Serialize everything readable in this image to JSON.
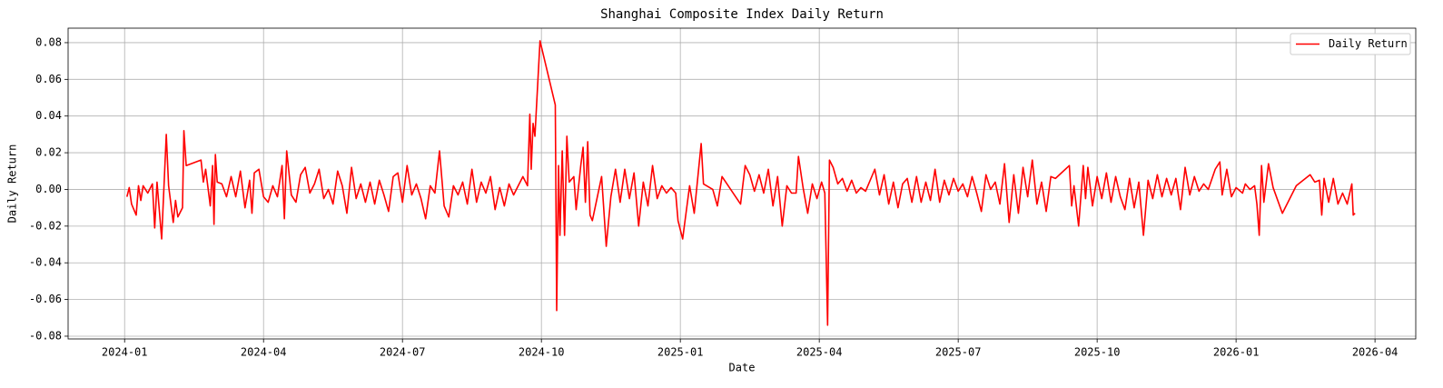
{
  "chart_data": {
    "type": "line",
    "title": "Shanghai Composite Index Daily Return",
    "x_label": "Date",
    "y_label": "Daily Return",
    "x": [
      0.05,
      0.1,
      0.15,
      0.25,
      0.3,
      0.35,
      0.4,
      0.5,
      0.6,
      0.65,
      0.7,
      0.8,
      0.9,
      0.95,
      1.05,
      1.1,
      1.15,
      1.25,
      1.28,
      1.33,
      1.65,
      1.7,
      1.75,
      1.85,
      1.9,
      1.93,
      1.96,
      2.0,
      2.1,
      2.2,
      2.3,
      2.4,
      2.5,
      2.6,
      2.7,
      2.75,
      2.8,
      2.9,
      3.0,
      3.1,
      3.2,
      3.3,
      3.4,
      3.45,
      3.5,
      3.6,
      3.7,
      3.8,
      3.9,
      4.0,
      4.1,
      4.2,
      4.3,
      4.4,
      4.5,
      4.6,
      4.7,
      4.8,
      4.9,
      5.0,
      5.1,
      5.2,
      5.3,
      5.4,
      5.5,
      5.6,
      5.7,
      5.8,
      5.9,
      6.0,
      6.1,
      6.2,
      6.3,
      6.4,
      6.5,
      6.6,
      6.7,
      6.8,
      6.9,
      7.0,
      7.1,
      7.2,
      7.3,
      7.4,
      7.5,
      7.6,
      7.7,
      7.8,
      7.9,
      8.0,
      8.1,
      8.2,
      8.3,
      8.4,
      8.5,
      8.6,
      8.7,
      8.75,
      8.78,
      8.82,
      8.86,
      8.97,
      9.3,
      9.33,
      9.37,
      9.4,
      9.45,
      9.5,
      9.55,
      9.6,
      9.7,
      9.75,
      9.85,
      9.9,
      9.95,
      10.0,
      10.05,
      10.1,
      10.2,
      10.3,
      10.4,
      10.5,
      10.6,
      10.7,
      10.8,
      10.9,
      11.0,
      11.1,
      11.2,
      11.3,
      11.4,
      11.5,
      11.6,
      11.7,
      11.8,
      11.9,
      11.95,
      12.05,
      12.2,
      12.3,
      12.45,
      12.5,
      12.7,
      12.8,
      12.9,
      13.3,
      13.4,
      13.5,
      13.6,
      13.7,
      13.8,
      13.9,
      14.0,
      14.1,
      14.2,
      14.3,
      14.4,
      14.5,
      14.55,
      14.65,
      14.75,
      14.85,
      14.95,
      15.05,
      15.12,
      15.18,
      15.22,
      15.3,
      15.4,
      15.5,
      15.6,
      15.7,
      15.8,
      15.9,
      16.0,
      16.2,
      16.3,
      16.4,
      16.5,
      16.6,
      16.7,
      16.8,
      16.9,
      17.0,
      17.1,
      17.2,
      17.3,
      17.4,
      17.5,
      17.6,
      17.7,
      17.8,
      17.9,
      18.0,
      18.1,
      18.2,
      18.3,
      18.4,
      18.5,
      18.6,
      18.7,
      18.8,
      18.9,
      19.0,
      19.1,
      19.2,
      19.3,
      19.4,
      19.5,
      19.6,
      19.7,
      19.8,
      19.9,
      20.0,
      20.1,
      20.4,
      20.45,
      20.5,
      20.6,
      20.7,
      20.75,
      20.8,
      20.9,
      21.0,
      21.1,
      21.2,
      21.3,
      21.4,
      21.5,
      21.6,
      21.7,
      21.8,
      21.9,
      22.0,
      22.1,
      22.2,
      22.3,
      22.4,
      22.5,
      22.6,
      22.7,
      22.8,
      22.9,
      23.0,
      23.1,
      23.2,
      23.3,
      23.4,
      23.55,
      23.65,
      23.7,
      23.8,
      23.9,
      24.0,
      24.14,
      24.2,
      24.3,
      24.4,
      24.45,
      24.5,
      24.55,
      24.6,
      24.7,
      24.8,
      25.0,
      25.3,
      25.6,
      25.7,
      25.8,
      25.85,
      25.9,
      26.0,
      26.1,
      26.2,
      26.3,
      26.4,
      26.5,
      26.53,
      26.57
    ],
    "series": [
      {
        "name": "Daily Return",
        "color": "#ff0000",
        "values": [
          -0.004,
          0.001,
          -0.008,
          -0.014,
          0.002,
          -0.006,
          0.002,
          -0.002,
          0.003,
          -0.021,
          0.004,
          -0.027,
          0.03,
          0.002,
          -0.018,
          -0.006,
          -0.015,
          -0.01,
          0.032,
          0.013,
          0.016,
          0.004,
          0.011,
          -0.009,
          0.013,
          -0.019,
          0.019,
          0.004,
          0.003,
          -0.004,
          0.007,
          -0.004,
          0.01,
          -0.01,
          0.005,
          -0.013,
          0.009,
          0.011,
          -0.004,
          -0.007,
          0.002,
          -0.004,
          0.013,
          -0.016,
          0.021,
          -0.003,
          -0.007,
          0.008,
          0.012,
          -0.002,
          0.003,
          0.011,
          -0.005,
          0.0,
          -0.008,
          0.01,
          0.002,
          -0.013,
          0.012,
          -0.005,
          0.003,
          -0.007,
          0.004,
          -0.008,
          0.005,
          -0.003,
          -0.012,
          0.007,
          0.009,
          -0.007,
          0.013,
          -0.003,
          0.003,
          -0.005,
          -0.016,
          0.002,
          -0.002,
          0.021,
          -0.009,
          -0.015,
          0.002,
          -0.003,
          0.004,
          -0.008,
          0.011,
          -0.007,
          0.004,
          -0.002,
          0.007,
          -0.011,
          0.001,
          -0.009,
          0.003,
          -0.003,
          0.002,
          0.007,
          0.002,
          0.041,
          0.011,
          0.036,
          0.029,
          0.081,
          0.046,
          -0.066,
          0.013,
          -0.025,
          0.021,
          -0.025,
          0.029,
          0.004,
          0.007,
          -0.011,
          0.013,
          0.023,
          -0.007,
          0.026,
          -0.014,
          -0.017,
          -0.005,
          0.007,
          -0.031,
          -0.004,
          0.011,
          -0.007,
          0.011,
          -0.005,
          0.009,
          -0.02,
          0.004,
          -0.009,
          0.013,
          -0.005,
          0.002,
          -0.002,
          0.001,
          -0.002,
          -0.017,
          -0.027,
          0.002,
          -0.013,
          0.025,
          0.003,
          0.0,
          -0.009,
          0.007,
          -0.008,
          0.013,
          0.008,
          -0.001,
          0.008,
          -0.002,
          0.011,
          -0.009,
          0.007,
          -0.02,
          0.002,
          -0.002,
          -0.002,
          0.018,
          0.001,
          -0.013,
          0.003,
          -0.005,
          0.004,
          -0.002,
          -0.074,
          0.016,
          0.012,
          0.003,
          0.006,
          -0.001,
          0.005,
          -0.002,
          0.001,
          -0.001,
          0.011,
          -0.003,
          0.008,
          -0.008,
          0.004,
          -0.01,
          0.003,
          0.006,
          -0.007,
          0.007,
          -0.007,
          0.004,
          -0.006,
          0.011,
          -0.007,
          0.005,
          -0.003,
          0.006,
          -0.001,
          0.003,
          -0.004,
          0.007,
          -0.002,
          -0.012,
          0.008,
          0.0,
          0.004,
          -0.008,
          0.014,
          -0.018,
          0.008,
          -0.013,
          0.012,
          -0.004,
          0.016,
          -0.008,
          0.004,
          -0.012,
          0.007,
          0.006,
          0.013,
          -0.009,
          0.002,
          -0.02,
          0.013,
          -0.005,
          0.012,
          -0.009,
          0.007,
          -0.005,
          0.009,
          -0.007,
          0.007,
          -0.004,
          -0.011,
          0.006,
          -0.01,
          0.004,
          -0.025,
          0.005,
          -0.005,
          0.008,
          -0.004,
          0.006,
          -0.003,
          0.006,
          -0.011,
          0.012,
          -0.003,
          0.007,
          -0.001,
          0.003,
          0.0,
          0.011,
          0.015,
          -0.003,
          0.011,
          -0.004,
          0.001,
          -0.002,
          0.003,
          0.0,
          0.002,
          -0.008,
          -0.025,
          0.013,
          -0.007,
          0.014,
          0.001,
          -0.013,
          0.002,
          0.008,
          0.004,
          0.005,
          -0.014,
          0.006,
          -0.007,
          0.006,
          -0.008,
          -0.002,
          -0.008,
          0.003,
          -0.014,
          -0.013
        ]
      }
    ],
    "xlim": [
      -1.22,
      27.88
    ],
    "xticks": [
      {
        "value": 0,
        "label": "2024-01"
      },
      {
        "value": 3,
        "label": "2024-04"
      },
      {
        "value": 6,
        "label": "2024-07"
      },
      {
        "value": 9,
        "label": "2024-10"
      },
      {
        "value": 12,
        "label": "2025-01"
      },
      {
        "value": 15,
        "label": "2025-04"
      },
      {
        "value": 18,
        "label": "2025-07"
      },
      {
        "value": 21,
        "label": "2025-10"
      },
      {
        "value": 24,
        "label": "2026-01"
      },
      {
        "value": 27,
        "label": "2026-04"
      }
    ],
    "ylim": [
      -0.0815,
      0.0879
    ],
    "yticks": [
      -0.08,
      -0.06,
      -0.04,
      -0.02,
      {
        "value": 0,
        "label": "0.00"
      },
      0.02,
      0.04,
      0.06,
      0.08
    ],
    "grid": true,
    "legend": "upper right"
  }
}
